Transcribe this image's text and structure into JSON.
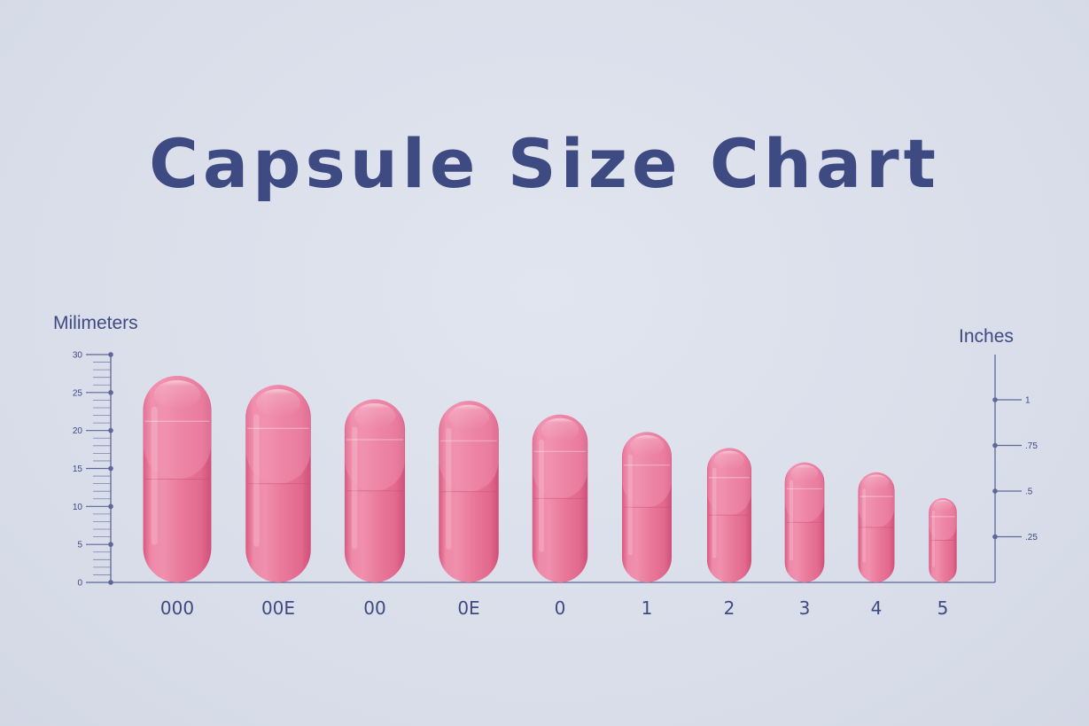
{
  "title": "Capsule Size Chart",
  "colors": {
    "text": "#3e4a82",
    "axis": "#5d6798",
    "capsule": "#ec7fa0",
    "background": "#dadfeb"
  },
  "chart_data": {
    "type": "bar",
    "title": "Capsule Size Chart",
    "ylabel_left": "Milimeters",
    "ylabel_right": "Inches",
    "categories": [
      "000",
      "00E",
      "00",
      "0E",
      "0",
      "1",
      "2",
      "3",
      "4",
      "5"
    ],
    "values": [
      27.2,
      26.0,
      24.1,
      23.9,
      22.1,
      19.8,
      17.7,
      15.8,
      14.5,
      11.1
    ],
    "ylim": [
      0,
      30
    ],
    "left_ticks": [
      "0",
      "5",
      "10",
      "15",
      "20",
      "25",
      "30"
    ],
    "left_tick_values": [
      0,
      5,
      10,
      15,
      20,
      25,
      30
    ],
    "right_ticks": [
      ".25",
      ".5",
      ".75",
      "1"
    ],
    "right_tick_values": [
      0.25,
      0.5,
      0.75,
      1
    ],
    "right_axis_mm_per_unit": 24.5
  }
}
